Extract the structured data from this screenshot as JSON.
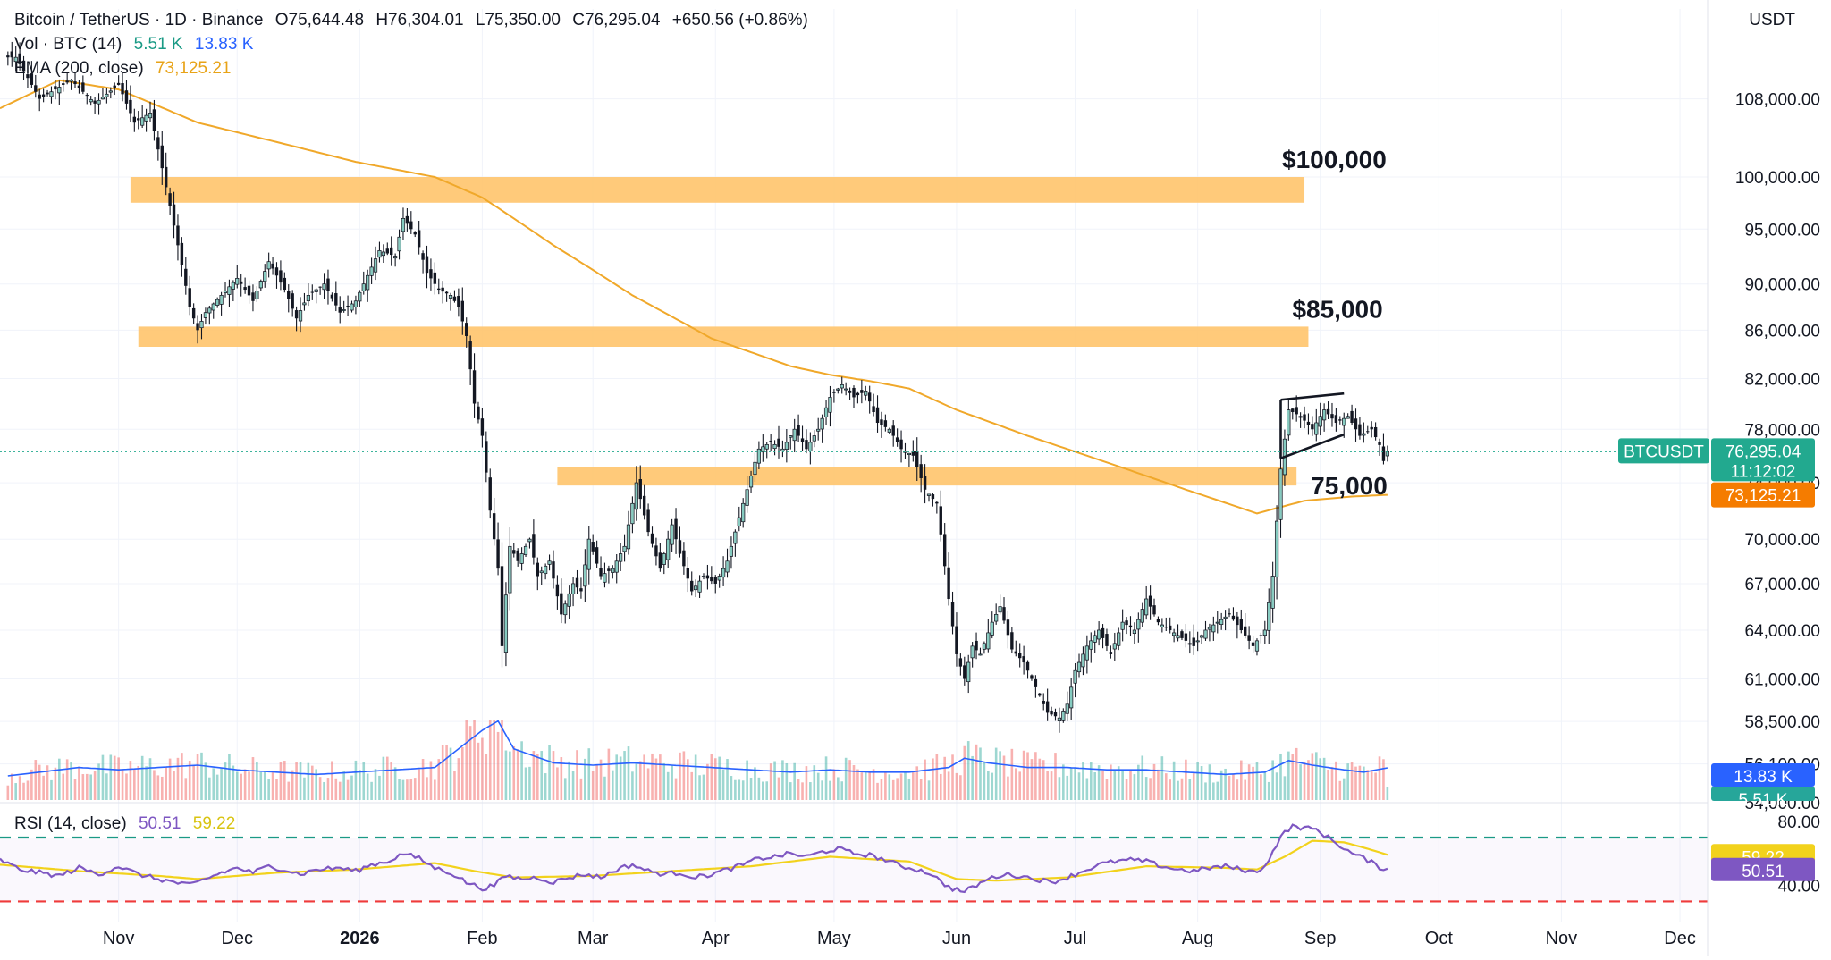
{
  "header": {
    "symbol": "Bitcoin / TetherUS · 1D · Binance",
    "open": "O75,644.48",
    "high": "H76,304.01",
    "low": "L75,350.00",
    "close": "C76,295.04",
    "change": "+650.56 (+0.86%)",
    "vol_label": "Vol · BTC (14)",
    "vol_value_1": "5.51 K",
    "vol_value_2": "13.83 K",
    "ema_label": "EMA (200, close)",
    "ema_value": "73,125.21",
    "rsi_label": "RSI (14, close)",
    "rsi_value": "50.51",
    "rsi_ma_value": "59.22"
  },
  "currency": "USDT",
  "badges": {
    "symbol": "BTCUSDT",
    "price": "76,295.04",
    "countdown": "11:12:02",
    "ema": "73,125.21",
    "vol_ma": "13.83 K",
    "vol": "5.51 K",
    "rsi_ma": "59.22",
    "rsi": "50.51"
  },
  "annotations": {
    "z1": "$100,000",
    "z2": "$85,000",
    "z3": "75,000"
  },
  "colors": {
    "up": "#26a69a",
    "down": "#ef5350",
    "ema": "#f0a82a",
    "zone": "#ffc46b",
    "vol_ma": "#2962ff",
    "rsi": "#7e57c2",
    "rsi_ma": "#f2d21c",
    "badge_price": "#22a98f",
    "badge_ema": "#f57c00"
  },
  "chart_data": {
    "type": "candlestick",
    "x_axis": {
      "labels": [
        "Nov",
        "Dec",
        "2026",
        "Feb",
        "Mar",
        "Apr",
        "May",
        "Jun",
        "Jul",
        "Aug",
        "Sep",
        "Oct",
        "Nov",
        "Dec"
      ],
      "label_day_index": [
        0,
        30,
        61,
        92,
        120,
        151,
        181,
        212,
        242,
        273,
        304,
        334,
        365,
        395
      ],
      "x_range_days": [
        -30,
        402
      ]
    },
    "y_axis": {
      "scale": "log",
      "range": [
        54000,
        118000
      ],
      "ticks": [
        108000,
        100000,
        95000,
        90000,
        86000,
        82000,
        78000,
        74000,
        70000,
        67000,
        64000,
        61000,
        58500,
        56100,
        54000
      ],
      "tick_labels": [
        "108,000.00",
        "100,000.00",
        "95,000.00",
        "90,000.00",
        "86,000.00",
        "82,000.00",
        "78,000.00",
        "74,000.00",
        "70,000.00",
        "67,000.00",
        "64,000.00",
        "61,000.00",
        "58,500.00",
        "56,100.00",
        "54,000.00"
      ]
    },
    "price_anchors_close": [
      [
        -26,
        112500
      ],
      [
        -20,
        108000
      ],
      [
        -12,
        110000
      ],
      [
        -6,
        107500
      ],
      [
        0,
        109500
      ],
      [
        4,
        105500
      ],
      [
        8,
        106500
      ],
      [
        12,
        99000
      ],
      [
        15,
        93500
      ],
      [
        18,
        88000
      ],
      [
        20,
        86000
      ],
      [
        22,
        87500
      ],
      [
        26,
        89000
      ],
      [
        30,
        90500
      ],
      [
        34,
        88500
      ],
      [
        38,
        92000
      ],
      [
        42,
        89500
      ],
      [
        45,
        87000
      ],
      [
        48,
        89000
      ],
      [
        52,
        90000
      ],
      [
        56,
        87500
      ],
      [
        60,
        88500
      ],
      [
        64,
        91500
      ],
      [
        66,
        93000
      ],
      [
        70,
        92500
      ],
      [
        72,
        96000
      ],
      [
        75,
        94500
      ],
      [
        78,
        91000
      ],
      [
        81,
        89500
      ],
      [
        84,
        89000
      ],
      [
        86,
        88000
      ],
      [
        88,
        85500
      ],
      [
        90,
        80000
      ],
      [
        92,
        77500
      ],
      [
        94,
        72000
      ],
      [
        96,
        68000
      ],
      [
        97,
        63000
      ],
      [
        99,
        69500
      ],
      [
        101,
        68500
      ],
      [
        104,
        70000
      ],
      [
        106,
        67500
      ],
      [
        109,
        68500
      ],
      [
        112,
        65000
      ],
      [
        115,
        67000
      ],
      [
        117,
        66500
      ],
      [
        119,
        70000
      ],
      [
        122,
        67500
      ],
      [
        125,
        68000
      ],
      [
        128,
        69500
      ],
      [
        131,
        74000
      ],
      [
        134,
        70500
      ],
      [
        137,
        68000
      ],
      [
        140,
        71000
      ],
      [
        142,
        69000
      ],
      [
        145,
        66500
      ],
      [
        148,
        67500
      ],
      [
        151,
        67000
      ],
      [
        154,
        68500
      ],
      [
        157,
        71500
      ],
      [
        159,
        73500
      ],
      [
        162,
        76500
      ],
      [
        165,
        77000
      ],
      [
        168,
        76500
      ],
      [
        171,
        78000
      ],
      [
        174,
        76500
      ],
      [
        177,
        78000
      ],
      [
        180,
        80500
      ],
      [
        183,
        81500
      ],
      [
        186,
        80500
      ],
      [
        189,
        81000
      ],
      [
        192,
        78500
      ],
      [
        195,
        78000
      ],
      [
        198,
        76500
      ],
      [
        201,
        76000
      ],
      [
        204,
        73500
      ],
      [
        207,
        72500
      ],
      [
        210,
        66000
      ],
      [
        212,
        62500
      ],
      [
        214,
        61000
      ],
      [
        216,
        63000
      ],
      [
        218,
        62500
      ],
      [
        221,
        64500
      ],
      [
        223,
        65500
      ],
      [
        226,
        62800
      ],
      [
        229,
        62000
      ],
      [
        232,
        60500
      ],
      [
        235,
        59000
      ],
      [
        238,
        58700
      ],
      [
        240,
        59500
      ],
      [
        242,
        61500
      ],
      [
        245,
        63000
      ],
      [
        248,
        64000
      ],
      [
        251,
        62500
      ],
      [
        254,
        64500
      ],
      [
        257,
        64000
      ],
      [
        260,
        66000
      ],
      [
        263,
        64500
      ],
      [
        266,
        64000
      ],
      [
        269,
        63500
      ],
      [
        272,
        63000
      ],
      [
        275,
        64000
      ],
      [
        278,
        64500
      ],
      [
        281,
        65000
      ],
      [
        284,
        64000
      ],
      [
        287,
        63000
      ],
      [
        290,
        64000
      ],
      [
        292,
        67500
      ],
      [
        294,
        75000
      ],
      [
        296,
        79500
      ],
      [
        299,
        79000
      ],
      [
        302,
        78000
      ],
      [
        305,
        79500
      ],
      [
        308,
        78500
      ],
      [
        311,
        79000
      ],
      [
        314,
        77500
      ],
      [
        317,
        78000
      ],
      [
        319,
        76800
      ],
      [
        320,
        75600
      ],
      [
        321,
        76295
      ]
    ],
    "ema200_anchors": [
      [
        -30,
        107000
      ],
      [
        -15,
        110000
      ],
      [
        0,
        109000
      ],
      [
        20,
        105500
      ],
      [
        40,
        103500
      ],
      [
        60,
        101500
      ],
      [
        80,
        100000
      ],
      [
        92,
        98000
      ],
      [
        110,
        93500
      ],
      [
        130,
        89000
      ],
      [
        150,
        85300
      ],
      [
        170,
        83000
      ],
      [
        180,
        82300
      ],
      [
        190,
        81800
      ],
      [
        200,
        81200
      ],
      [
        212,
        79500
      ],
      [
        230,
        77500
      ],
      [
        250,
        75500
      ],
      [
        270,
        73500
      ],
      [
        288,
        71800
      ],
      [
        300,
        72700
      ],
      [
        312,
        73000
      ],
      [
        321,
        73125
      ]
    ],
    "rsi_anchors": [
      [
        -30,
        56
      ],
      [
        -25,
        50
      ],
      [
        -20,
        48
      ],
      [
        -15,
        46
      ],
      [
        -10,
        51
      ],
      [
        -5,
        47
      ],
      [
        0,
        52
      ],
      [
        5,
        47
      ],
      [
        10,
        44
      ],
      [
        14,
        42
      ],
      [
        18,
        40
      ],
      [
        22,
        44
      ],
      [
        26,
        48
      ],
      [
        30,
        51
      ],
      [
        34,
        48
      ],
      [
        38,
        52
      ],
      [
        42,
        50
      ],
      [
        46,
        47
      ],
      [
        50,
        50
      ],
      [
        56,
        51
      ],
      [
        60,
        49
      ],
      [
        64,
        53
      ],
      [
        68,
        55
      ],
      [
        72,
        60
      ],
      [
        76,
        57
      ],
      [
        80,
        51
      ],
      [
        84,
        48
      ],
      [
        88,
        42
      ],
      [
        92,
        38
      ],
      [
        95,
        40
      ],
      [
        98,
        46
      ],
      [
        102,
        44
      ],
      [
        106,
        45
      ],
      [
        110,
        42
      ],
      [
        114,
        45
      ],
      [
        118,
        47
      ],
      [
        122,
        45
      ],
      [
        126,
        50
      ],
      [
        130,
        53
      ],
      [
        134,
        49
      ],
      [
        138,
        47
      ],
      [
        142,
        48
      ],
      [
        146,
        45
      ],
      [
        150,
        47
      ],
      [
        154,
        50
      ],
      [
        158,
        53
      ],
      [
        162,
        57
      ],
      [
        166,
        58
      ],
      [
        170,
        60
      ],
      [
        174,
        58
      ],
      [
        178,
        61
      ],
      [
        182,
        63
      ],
      [
        186,
        60
      ],
      [
        190,
        59
      ],
      [
        194,
        56
      ],
      [
        198,
        52
      ],
      [
        202,
        50
      ],
      [
        206,
        47
      ],
      [
        208,
        42
      ],
      [
        211,
        38
      ],
      [
        214,
        36
      ],
      [
        217,
        40
      ],
      [
        220,
        44
      ],
      [
        224,
        47
      ],
      [
        228,
        46
      ],
      [
        232,
        44
      ],
      [
        236,
        42
      ],
      [
        240,
        45
      ],
      [
        244,
        49
      ],
      [
        248,
        53
      ],
      [
        252,
        55
      ],
      [
        256,
        56
      ],
      [
        260,
        55
      ],
      [
        264,
        52
      ],
      [
        268,
        50
      ],
      [
        272,
        49
      ],
      [
        276,
        51
      ],
      [
        280,
        52
      ],
      [
        284,
        50
      ],
      [
        288,
        48
      ],
      [
        291,
        56
      ],
      [
        294,
        71
      ],
      [
        297,
        77
      ],
      [
        300,
        76
      ],
      [
        303,
        75
      ],
      [
        306,
        70
      ],
      [
        309,
        65
      ],
      [
        312,
        60
      ],
      [
        315,
        57
      ],
      [
        318,
        53
      ],
      [
        320,
        50
      ],
      [
        321,
        50.51
      ]
    ],
    "rsi_ma_anchors": [
      [
        -30,
        53
      ],
      [
        -10,
        49
      ],
      [
        10,
        46
      ],
      [
        20,
        44
      ],
      [
        40,
        48
      ],
      [
        60,
        50
      ],
      [
        80,
        54
      ],
      [
        90,
        49
      ],
      [
        100,
        45
      ],
      [
        120,
        46
      ],
      [
        140,
        49
      ],
      [
        160,
        52
      ],
      [
        180,
        58
      ],
      [
        200,
        55
      ],
      [
        212,
        44
      ],
      [
        222,
        43
      ],
      [
        240,
        45
      ],
      [
        260,
        52
      ],
      [
        280,
        51
      ],
      [
        288,
        50
      ],
      [
        295,
        58
      ],
      [
        302,
        68
      ],
      [
        310,
        67
      ],
      [
        316,
        63
      ],
      [
        321,
        59.22
      ]
    ],
    "rsi_levels": {
      "upper": 70,
      "lower": 30,
      "range": [
        28,
        84
      ]
    },
    "rsi_axis": {
      "ticks": [
        80,
        40
      ],
      "tick_labels": [
        "80.00",
        "40.00"
      ]
    },
    "volume_anchors_k": [
      [
        -30,
        10
      ],
      [
        -20,
        12
      ],
      [
        -10,
        14
      ],
      [
        0,
        13
      ],
      [
        10,
        14
      ],
      [
        20,
        15
      ],
      [
        30,
        13
      ],
      [
        40,
        12
      ],
      [
        50,
        11
      ],
      [
        60,
        12
      ],
      [
        70,
        13
      ],
      [
        80,
        14
      ],
      [
        92,
        30
      ],
      [
        96,
        34
      ],
      [
        100,
        22
      ],
      [
        110,
        16
      ],
      [
        120,
        15
      ],
      [
        130,
        16
      ],
      [
        140,
        15
      ],
      [
        150,
        14
      ],
      [
        160,
        13
      ],
      [
        170,
        12
      ],
      [
        180,
        13
      ],
      [
        190,
        12
      ],
      [
        200,
        12
      ],
      [
        210,
        14
      ],
      [
        214,
        18
      ],
      [
        220,
        16
      ],
      [
        230,
        14
      ],
      [
        240,
        14
      ],
      [
        250,
        13
      ],
      [
        260,
        13
      ],
      [
        270,
        12
      ],
      [
        280,
        11
      ],
      [
        290,
        12
      ],
      [
        296,
        17
      ],
      [
        302,
        15
      ],
      [
        310,
        13
      ],
      [
        315,
        12
      ],
      [
        321,
        13.83
      ]
    ],
    "volume_last_k": 5.51,
    "price_zones": [
      {
        "low": 97500,
        "high": 100000,
        "start_day": 3,
        "end_day": 300
      },
      {
        "low": 84600,
        "high": 86300,
        "start_day": 5,
        "end_day": 301
      },
      {
        "low": 73800,
        "high": 75150,
        "start_day": 111,
        "end_day": 298
      }
    ],
    "pattern_lines": [
      {
        "d1": 294,
        "p1": 80300,
        "d2": 310,
        "p2": 80800
      },
      {
        "d1": 294,
        "p1": 75800,
        "d2": 310,
        "p2": 77600
      },
      {
        "d1": 294,
        "p1": 80300,
        "d2": 294,
        "p2": 75800
      }
    ]
  }
}
